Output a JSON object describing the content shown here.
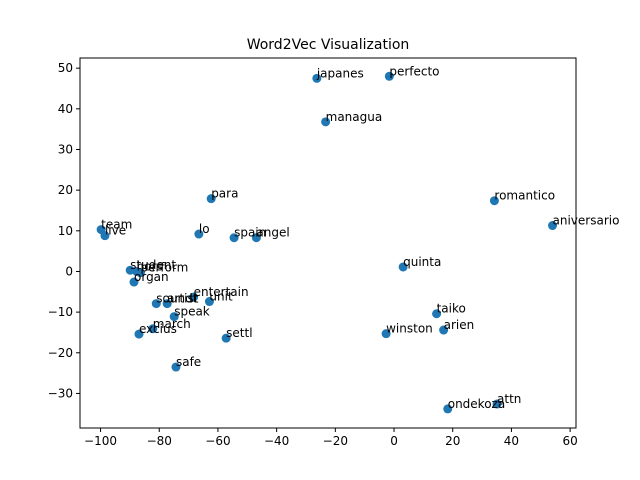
{
  "chart_data": {
    "type": "scatter",
    "title": "Word2Vec Visualization",
    "xlabel": "",
    "ylabel": "",
    "xlim": [
      -107,
      62
    ],
    "ylim": [
      -38.5,
      52.5
    ],
    "x_ticks": [
      -100,
      -80,
      -60,
      -40,
      -20,
      0,
      20,
      40,
      60
    ],
    "y_ticks": [
      -30,
      -20,
      -10,
      0,
      10,
      20,
      30,
      40,
      50
    ],
    "x_tick_labels": [
      "−100",
      "−80",
      "−60",
      "−40",
      "−20",
      "0",
      "20",
      "40",
      "60"
    ],
    "y_tick_labels": [
      "−30",
      "−20",
      "−10",
      "0",
      "10",
      "20",
      "30",
      "40",
      "50"
    ],
    "grid": false,
    "marker_color": "#1f77b4",
    "points": [
      {
        "label": "japanes",
        "x": -26.3,
        "y": 47.5
      },
      {
        "label": "perfecto",
        "x": -1.6,
        "y": 48.0
      },
      {
        "label": "managua",
        "x": -23.3,
        "y": 36.8
      },
      {
        "label": "para",
        "x": -62.3,
        "y": 17.9
      },
      {
        "label": "romantico",
        "x": 34.2,
        "y": 17.4
      },
      {
        "label": "aniversario",
        "x": 54.0,
        "y": 11.3
      },
      {
        "label": "team",
        "x": -99.8,
        "y": 10.3
      },
      {
        "label": "live",
        "x": -98.5,
        "y": 8.8
      },
      {
        "label": "lo",
        "x": -66.5,
        "y": 9.2
      },
      {
        "label": "spain",
        "x": -54.5,
        "y": 8.3
      },
      {
        "label": "angel",
        "x": -46.9,
        "y": 8.3
      },
      {
        "label": "quinta",
        "x": 3.1,
        "y": 1.1
      },
      {
        "label": "student",
        "x": -89.9,
        "y": 0.3
      },
      {
        "label": "hors",
        "x": -87.7,
        "y": 0.0
      },
      {
        "label": "perform",
        "x": -86.4,
        "y": -0.3
      },
      {
        "label": "organ",
        "x": -88.6,
        "y": -2.6
      },
      {
        "label": "entertain",
        "x": -68.3,
        "y": -6.3
      },
      {
        "label": "unit",
        "x": -62.9,
        "y": -7.4
      },
      {
        "label": "soundt",
        "x": -81.0,
        "y": -7.9
      },
      {
        "label": "artist",
        "x": -77.3,
        "y": -7.9
      },
      {
        "label": "speak",
        "x": -74.9,
        "y": -11.1
      },
      {
        "label": "march",
        "x": -82.2,
        "y": -14.1
      },
      {
        "label": "excius",
        "x": -86.9,
        "y": -15.4
      },
      {
        "label": "settl",
        "x": -57.2,
        "y": -16.4
      },
      {
        "label": "safe",
        "x": -74.3,
        "y": -23.5
      },
      {
        "label": "taiko",
        "x": 14.5,
        "y": -10.4
      },
      {
        "label": "arien",
        "x": 16.9,
        "y": -14.4
      },
      {
        "label": "winston",
        "x": -2.7,
        "y": -15.3
      },
      {
        "label": "attn",
        "x": 35.1,
        "y": -32.6
      },
      {
        "label": "ondekoza",
        "x": 18.3,
        "y": -33.8
      }
    ]
  }
}
